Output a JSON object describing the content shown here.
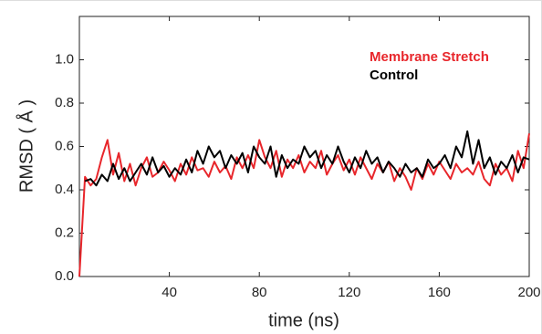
{
  "chart_data": {
    "type": "line",
    "xlabel": "time (ns)",
    "ylabel": "RMSD ( Å )",
    "x": [
      0,
      2.5,
      5,
      7.5,
      10,
      12.5,
      15,
      17.5,
      20,
      22.5,
      25,
      27.5,
      30,
      32.5,
      35,
      37.5,
      40,
      42.5,
      45,
      47.5,
      50,
      52.5,
      55,
      57.5,
      60,
      62.5,
      65,
      67.5,
      70,
      72.5,
      75,
      77.5,
      80,
      82.5,
      85,
      87.5,
      90,
      92.5,
      95,
      97.5,
      100,
      102.5,
      105,
      107.5,
      110,
      112.5,
      115,
      117.5,
      120,
      122.5,
      125,
      127.5,
      130,
      132.5,
      135,
      137.5,
      140,
      142.5,
      145,
      147.5,
      150,
      152.5,
      155,
      157.5,
      160,
      162.5,
      165,
      167.5,
      170,
      172.5,
      175,
      177.5,
      180,
      182.5,
      185,
      187.5,
      190,
      192.5,
      195,
      197.5,
      200
    ],
    "series": [
      {
        "name": "Membrane Stretch",
        "color": "#e8262b",
        "values": [
          0,
          0.46,
          0.42,
          0.45,
          0.55,
          0.63,
          0.47,
          0.57,
          0.44,
          0.52,
          0.42,
          0.5,
          0.55,
          0.46,
          0.48,
          0.53,
          0.49,
          0.44,
          0.52,
          0.47,
          0.55,
          0.49,
          0.5,
          0.46,
          0.53,
          0.48,
          0.51,
          0.45,
          0.55,
          0.5,
          0.56,
          0.5,
          0.63,
          0.55,
          0.5,
          0.58,
          0.46,
          0.54,
          0.5,
          0.56,
          0.48,
          0.53,
          0.5,
          0.58,
          0.47,
          0.52,
          0.56,
          0.49,
          0.54,
          0.47,
          0.55,
          0.5,
          0.45,
          0.52,
          0.48,
          0.53,
          0.44,
          0.5,
          0.46,
          0.4,
          0.5,
          0.45,
          0.52,
          0.47,
          0.53,
          0.49,
          0.45,
          0.52,
          0.48,
          0.5,
          0.47,
          0.53,
          0.45,
          0.42,
          0.52,
          0.47,
          0.5,
          0.44,
          0.58,
          0.5,
          0.66
        ]
      },
      {
        "name": "Control",
        "color": "#000000",
        "values": [
          null,
          0.44,
          0.45,
          0.42,
          0.47,
          0.44,
          0.52,
          0.45,
          0.5,
          0.44,
          0.48,
          0.52,
          0.47,
          0.55,
          0.48,
          0.51,
          0.46,
          0.5,
          0.47,
          0.54,
          0.48,
          0.58,
          0.52,
          0.6,
          0.55,
          0.58,
          0.5,
          0.56,
          0.52,
          0.57,
          0.48,
          0.6,
          0.55,
          0.52,
          0.6,
          0.46,
          0.56,
          0.5,
          0.54,
          0.52,
          0.6,
          0.55,
          0.58,
          0.5,
          0.56,
          0.52,
          0.6,
          0.53,
          0.48,
          0.55,
          0.5,
          0.58,
          0.52,
          0.55,
          0.48,
          0.53,
          0.5,
          0.46,
          0.52,
          0.48,
          0.5,
          0.46,
          0.54,
          0.5,
          0.52,
          0.56,
          0.5,
          0.6,
          0.55,
          0.67,
          0.52,
          0.63,
          0.5,
          0.55,
          0.47,
          0.53,
          0.5,
          0.56,
          0.48,
          0.55,
          0.54
        ]
      }
    ],
    "xlim": [
      0,
      200
    ],
    "xticks": [
      40,
      80,
      120,
      160,
      200
    ],
    "ylim": [
      0,
      1.2
    ],
    "yticks": [
      {
        "value": 0,
        "label": "0.0"
      },
      0.2,
      0.4,
      0.6,
      0.8,
      {
        "value": 1,
        "label": "1.0"
      }
    ],
    "legend": "upper right"
  }
}
